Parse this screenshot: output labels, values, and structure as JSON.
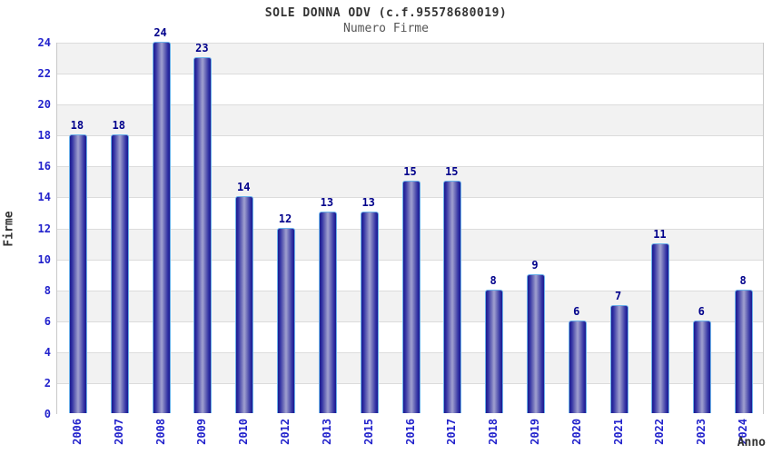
{
  "header": {
    "title": "SOLE DONNA ODV (c.f.95578680019)",
    "subtitle": "Numero Firme"
  },
  "chart_data": {
    "type": "bar",
    "title": "SOLE DONNA ODV (c.f.95578680019)",
    "subtitle": "Numero Firme",
    "xlabel": "Anno",
    "ylabel": "Firme",
    "categories": [
      "2006",
      "2007",
      "2008",
      "2009",
      "2010",
      "2012",
      "2013",
      "2015",
      "2016",
      "2017",
      "2018",
      "2019",
      "2020",
      "2021",
      "2022",
      "2023",
      "2024"
    ],
    "values": [
      18,
      18,
      24,
      23,
      14,
      12,
      13,
      13,
      15,
      15,
      8,
      9,
      6,
      7,
      11,
      6,
      8
    ],
    "ylim": [
      0,
      24
    ],
    "ytick_step": 2,
    "yticks": [
      0,
      2,
      4,
      6,
      8,
      10,
      12,
      14,
      16,
      18,
      20,
      22,
      24
    ],
    "grid": "horizontal gridlines every 2 units with alternating shaded bands",
    "legend_position": "none",
    "bar_labels_shown": true,
    "colors": {
      "tick_blue": "#2222cc",
      "value_navy": "#00008b",
      "bar_dark": "#1b1b8f",
      "bar_light": "#9b9bcd",
      "bar_border": "#6cb2ea",
      "band_gray": "#f2f2f2",
      "gridline": "#dcdcdc",
      "axis_line": "#c8c8c8",
      "title_color": "#333333",
      "subtitle_color": "#555555"
    }
  }
}
